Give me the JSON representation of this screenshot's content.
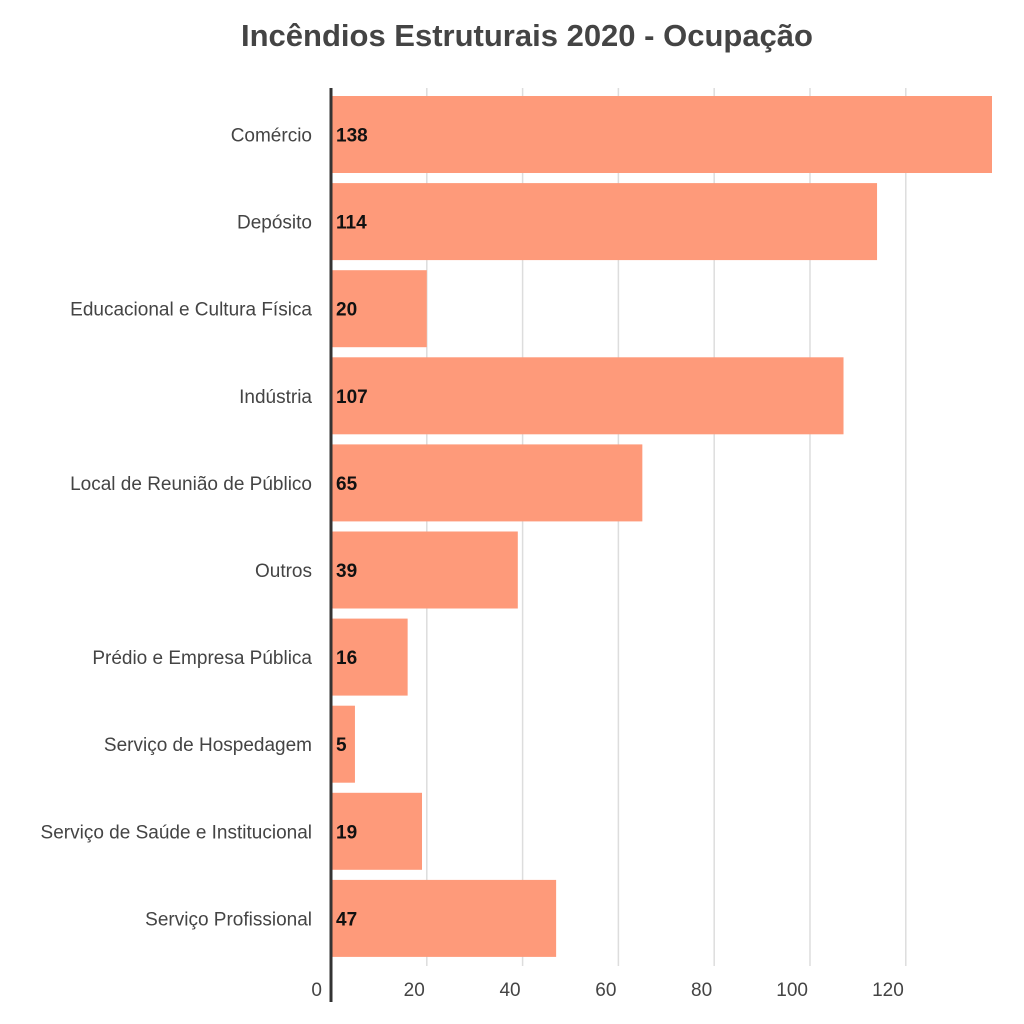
{
  "chart_data": {
    "type": "bar",
    "orientation": "horizontal",
    "title": "Incêndios Estruturais 2020 - Ocupação",
    "xlabel": "",
    "ylabel": "",
    "categories": [
      "Comércio",
      "Depósito",
      "Educacional e Cultura Física",
      "Indústria",
      "Local de Reunião de Público",
      "Outros",
      "Prédio e Empresa Pública",
      "Serviço de Hospedagem",
      "Serviço de Saúde e Institucional",
      "Serviço Profissional"
    ],
    "values": [
      138,
      114,
      20,
      107,
      65,
      39,
      16,
      5,
      19,
      47
    ],
    "data_labels": [
      "138",
      "114",
      "20",
      "107",
      "65",
      "39",
      "16",
      "5",
      "19",
      "47"
    ],
    "xlim": [
      0,
      138
    ],
    "x_ticks": [
      0,
      20,
      40,
      60,
      80,
      100,
      120
    ],
    "x_tick_labels": [
      "0",
      "20",
      "40",
      "60",
      "80",
      "100",
      "120"
    ],
    "grid": "vertical",
    "legend": "none",
    "colors": {
      "bar": "#fe9a7a",
      "grid": "#dddddd",
      "axis": "#333333",
      "text": "#444444",
      "data_label": "#111111"
    }
  }
}
